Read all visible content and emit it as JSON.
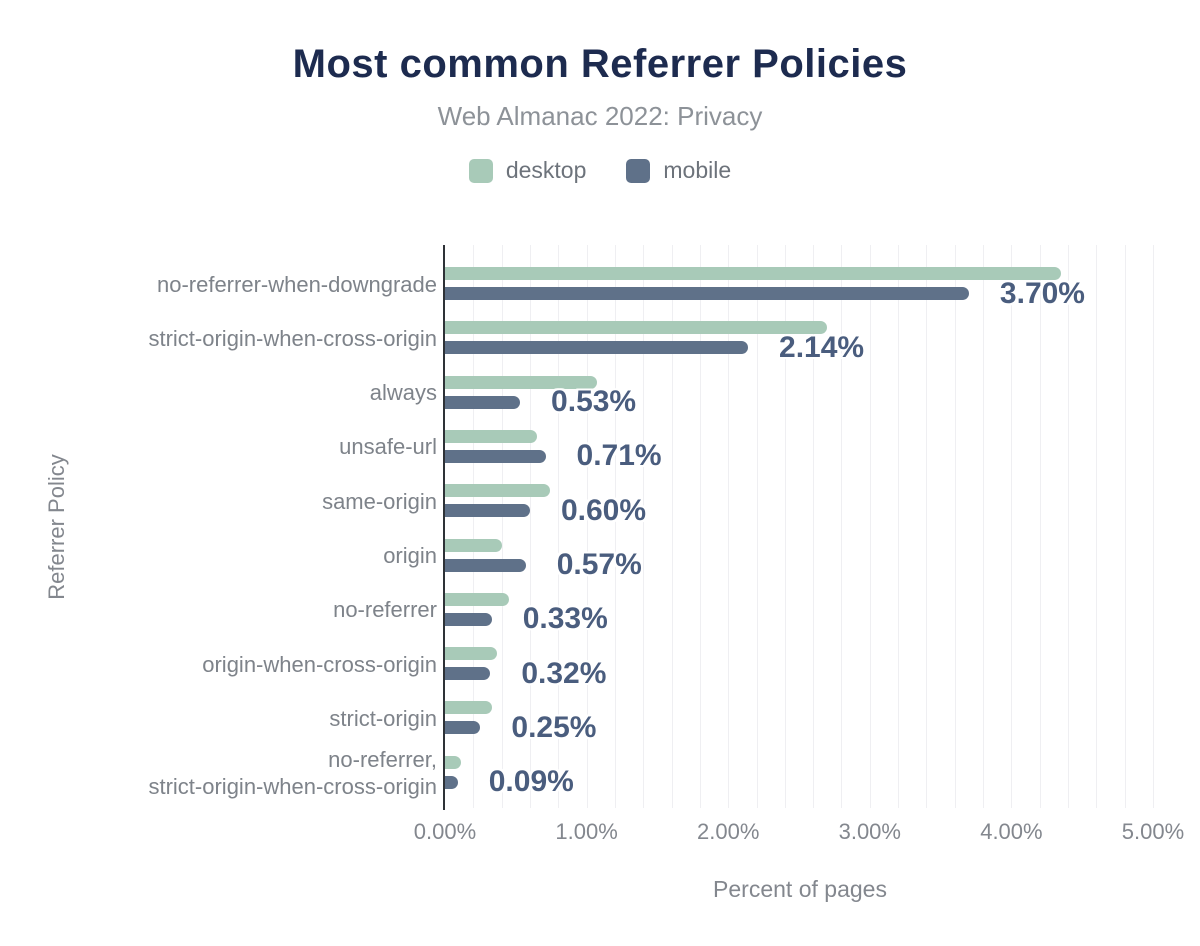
{
  "header": {
    "title": "Most common Referrer Policies",
    "subtitle": "Web Almanac 2022: Privacy"
  },
  "legend": {
    "desktop": "desktop",
    "mobile": "mobile"
  },
  "colors": {
    "desktop_bar": "#a8cab8",
    "mobile_bar": "#5f7189",
    "title_text": "#1d2b4f",
    "value_label_text": "#4a5d7e",
    "axis_text": "#83878e",
    "category_text": "#7e838a",
    "gridline": "#efeff2",
    "axis_line": "#2e3237",
    "background": "#ffffff"
  },
  "chart_data": {
    "type": "bar",
    "orientation": "horizontal",
    "title": "Most common Referrer Policies",
    "subtitle": "Web Almanac 2022: Privacy",
    "xlabel": "Percent of pages",
    "ylabel": "Referrer Policy",
    "xlim": [
      0,
      5.12
    ],
    "grid": true,
    "grid_step": 0.2,
    "legend_position": "top",
    "x_tick_values": [
      0,
      1,
      2,
      3,
      4,
      5
    ],
    "x_tick_labels": [
      "0.00%",
      "1.00%",
      "2.00%",
      "3.00%",
      "4.00%",
      "5.00%"
    ],
    "categories": [
      "no-referrer-when-downgrade",
      "strict-origin-when-cross-origin",
      "always",
      "unsafe-url",
      "same-origin",
      "origin",
      "no-referrer",
      "origin-when-cross-origin",
      "strict-origin",
      "no-referrer,\nstrict-origin-when-cross-origin"
    ],
    "series": [
      {
        "name": "desktop",
        "color": "#a8cab8",
        "values": [
          4.35,
          2.7,
          1.07,
          0.65,
          0.74,
          0.4,
          0.45,
          0.37,
          0.33,
          0.11
        ]
      },
      {
        "name": "mobile",
        "color": "#5f7189",
        "values": [
          3.7,
          2.14,
          0.53,
          0.71,
          0.6,
          0.57,
          0.33,
          0.32,
          0.25,
          0.09
        ]
      }
    ],
    "value_labels": [
      "3.70%",
      "2.14%",
      "0.53%",
      "0.71%",
      "0.60%",
      "0.57%",
      "0.33%",
      "0.32%",
      "0.25%",
      "0.09%"
    ],
    "value_labels_series": "mobile"
  }
}
